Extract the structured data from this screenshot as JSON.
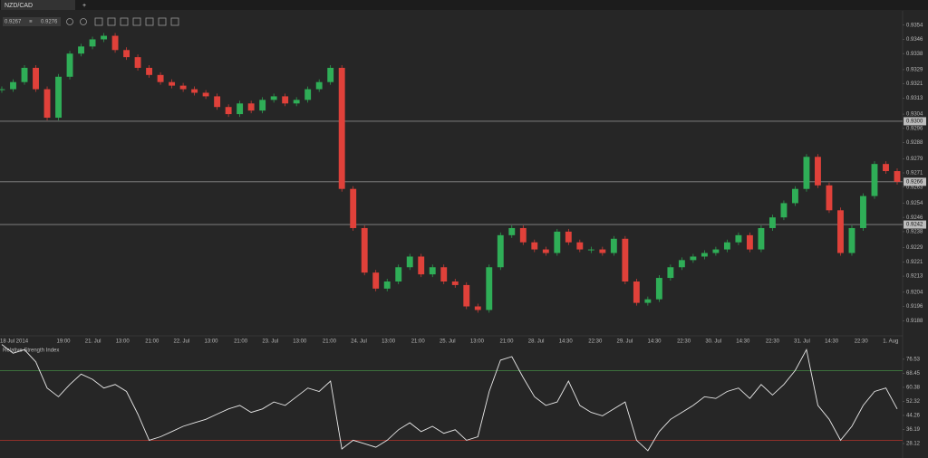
{
  "ui": {
    "tab": "NZD/CAD",
    "bid": 0.9267,
    "ask": 0.9276
  },
  "chart_data": [
    {
      "type": "candlestick",
      "colors": {
        "up": "#2fae57",
        "down": "#e0413a"
      },
      "values": [
        0.9318,
        0.9322,
        0.933,
        0.9318,
        0.9302,
        0.9325,
        0.9338,
        0.9342,
        0.9346,
        0.9348,
        0.934,
        0.9336,
        0.933,
        0.9326,
        0.9322,
        0.932,
        0.9318,
        0.9316,
        0.9314,
        0.9308,
        0.9304,
        0.931,
        0.9306,
        0.9312,
        0.9314,
        0.931,
        0.9312,
        0.9318,
        0.9322,
        0.933,
        0.9262,
        0.924,
        0.9215,
        0.9206,
        0.921,
        0.9218,
        0.9224,
        0.9214,
        0.9218,
        0.921,
        0.9208,
        0.9196,
        0.9194,
        0.9218,
        0.9236,
        0.924,
        0.9232,
        0.9228,
        0.9226,
        0.9238,
        0.9232,
        0.9228,
        0.9228,
        0.9226,
        0.9234,
        0.921,
        0.9198,
        0.92,
        0.9212,
        0.9218,
        0.9222,
        0.9224,
        0.9226,
        0.9228,
        0.9232,
        0.9236,
        0.9228,
        0.924,
        0.9246,
        0.9254,
        0.9262,
        0.928,
        0.9264,
        0.925,
        0.9226,
        0.924,
        0.9258,
        0.9276,
        0.9272,
        0.9266
      ],
      "ylim": [
        0.918,
        0.9362
      ],
      "yticks": [
        0.9354,
        0.9346,
        0.9338,
        0.9329,
        0.9321,
        0.9313,
        0.9304,
        0.9296,
        0.9288,
        0.9279,
        0.9271,
        0.9263,
        0.9254,
        0.9246,
        0.9238,
        0.9229,
        0.9221,
        0.9213,
        0.9204,
        0.9196,
        0.9188
      ],
      "levels": [
        {
          "value": 0.93,
          "label": "0.9300"
        },
        {
          "value": 0.9266,
          "label": "0.9266"
        },
        {
          "value": 0.9242,
          "label": "0.9242"
        }
      ],
      "time_labels": [
        "18 Jul 2014",
        "19:00",
        "21. Jul",
        "13:00",
        "21:00",
        "22. Jul",
        "13:00",
        "21:00",
        "23. Jul",
        "13:00",
        "21:00",
        "24. Jul",
        "13:00",
        "21:00",
        "25. Jul",
        "13:00",
        "21:00",
        "28. Jul",
        "14:30",
        "22:30",
        "29. Jul",
        "14:30",
        "22:30",
        "30. Jul",
        "14:30",
        "22:30",
        "31. Jul",
        "14:30",
        "22:30",
        "1. Aug"
      ]
    },
    {
      "type": "line",
      "title": "Relative Strength Index",
      "color": "#e8e8e8",
      "values": [
        85,
        80,
        82,
        75,
        60,
        55,
        62,
        68,
        65,
        60,
        62,
        58,
        45,
        30,
        32,
        35,
        38,
        40,
        42,
        45,
        48,
        50,
        46,
        48,
        52,
        50,
        55,
        60,
        58,
        64,
        25,
        30,
        28,
        26,
        30,
        36,
        40,
        35,
        38,
        34,
        36,
        30,
        32,
        58,
        76,
        78,
        66,
        55,
        50,
        52,
        64,
        50,
        46,
        44,
        48,
        52,
        30,
        24,
        35,
        42,
        46,
        50,
        55,
        54,
        58,
        60,
        54,
        62,
        56,
        62,
        70,
        82,
        50,
        42,
        30,
        38,
        50,
        58,
        60,
        48
      ],
      "ylim": [
        19.8,
        87.9
      ],
      "yticks": [
        76.53,
        68.45,
        60.38,
        52.32,
        44.26,
        36.19,
        28.12
      ],
      "levels": [
        {
          "value": 70,
          "color": "#3f7a3f"
        },
        {
          "value": 30,
          "color": "#b2322c"
        }
      ]
    }
  ]
}
